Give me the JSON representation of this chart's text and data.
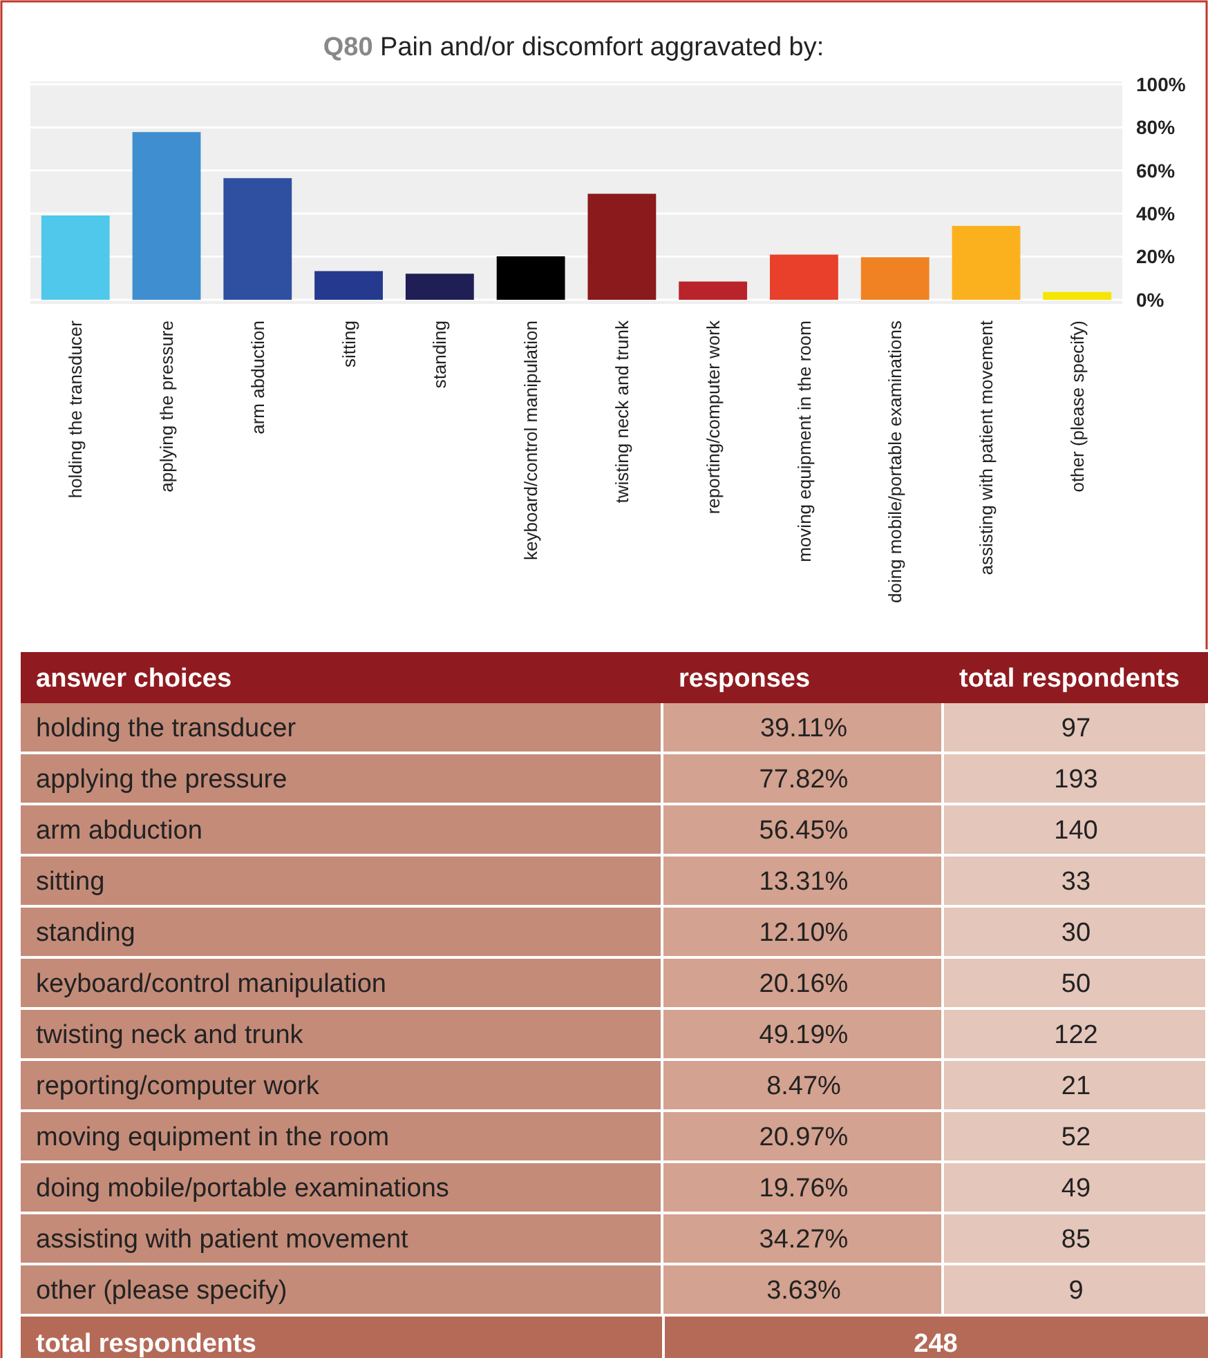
{
  "chart_data": [
    {
      "type": "bar",
      "title": "Q80 Pain and/or discomfort aggravated by:",
      "categories": [
        "holding the transducer",
        "applying the pressure",
        "arm abduction",
        "sitting",
        "standing",
        "keyboard/control manipulation",
        "twisting neck and trunk",
        "reporting/computer work",
        "moving equipment in the room",
        "doing mobile/portable examinations",
        "assisting with patient movement",
        "other (please specify)"
      ],
      "values": [
        39.11,
        77.82,
        56.45,
        13.31,
        12.1,
        20.16,
        49.19,
        8.47,
        20.97,
        19.76,
        34.27,
        3.63
      ],
      "value_labels": [
        "39.11%",
        "77.82%",
        "56.45%",
        "13.31%",
        "12.10%",
        "20.16%",
        "49.19%",
        "8.47%",
        "20.97%",
        "19.76%",
        "34.27%",
        "3.63%"
      ],
      "colors": [
        "#4fc8ec",
        "#3f8fd0",
        "#2f4fa0",
        "#253a8e",
        "#1f1f55",
        "#000000",
        "#8a1a1c",
        "#b8242a",
        "#e8402a",
        "#f08224",
        "#fbb01e",
        "#f5e500"
      ],
      "ylim": [
        0,
        100
      ],
      "yticks": [
        {
          "value": 0,
          "label": "0%"
        },
        {
          "value": 20,
          "label": "20%"
        },
        {
          "value": 40,
          "label": "40%"
        },
        {
          "value": 60,
          "label": "60%"
        },
        {
          "value": 80,
          "label": "80%"
        },
        {
          "value": 100,
          "label": "100%"
        }
      ],
      "grid": "y"
    },
    {
      "type": "other",
      "legend_title": "answer choices",
      "categories": [
        "holding the transducer",
        "applying the pressure",
        "arm abduction",
        "sitting",
        "standing",
        "keyboard/control manipulation",
        "twisting neck and trunk",
        "reporting/computer work",
        "moving equipment in the room",
        "doing mobile/portable examinations",
        "assisting with patient movement",
        "other (please specify)"
      ],
      "values": [
        97,
        193,
        140,
        33,
        30,
        50,
        122,
        21,
        52,
        49,
        85,
        9
      ],
      "data_labels": true,
      "annotations": [
        "responses",
        "total respondents",
        "total respondents",
        "248"
      ]
    }
  ]
}
